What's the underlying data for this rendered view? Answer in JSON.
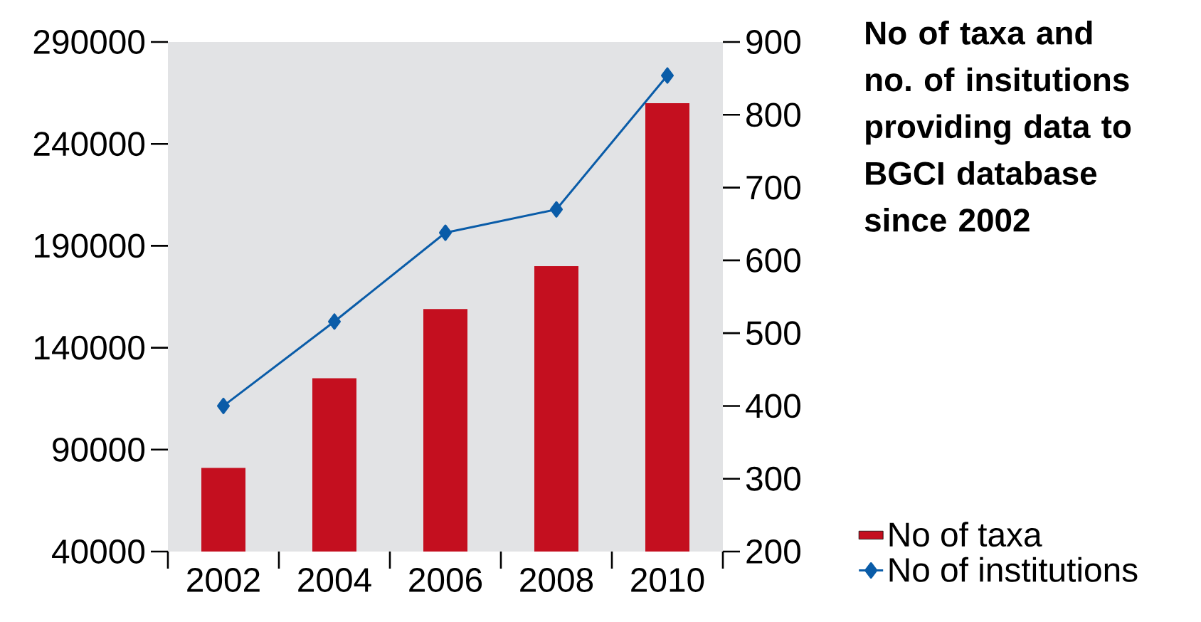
{
  "chart_data": {
    "type": "bar",
    "title": "No of taxa and no. of insitutions providing data to BGCI database since 2002",
    "categories": [
      "2002",
      "2004",
      "2006",
      "2008",
      "2010"
    ],
    "series": [
      {
        "name": "No of taxa",
        "color": "#c40f1f",
        "values": [
          81000,
          125000,
          159000,
          180000,
          260000
        ]
      },
      {
        "name": "No of institutions",
        "type": "line",
        "axis": "y2",
        "marker": "diamond",
        "color": "#0a5ca8",
        "values": [
          400,
          516,
          638,
          670,
          854
        ]
      }
    ],
    "ylim": [
      40000,
      290000
    ],
    "yticks": [
      40000,
      90000,
      140000,
      190000,
      240000,
      290000
    ],
    "y2lim": [
      200,
      900
    ],
    "y2ticks": [
      200,
      300,
      400,
      500,
      600,
      700,
      800,
      900
    ],
    "legend": "bottom right"
  }
}
